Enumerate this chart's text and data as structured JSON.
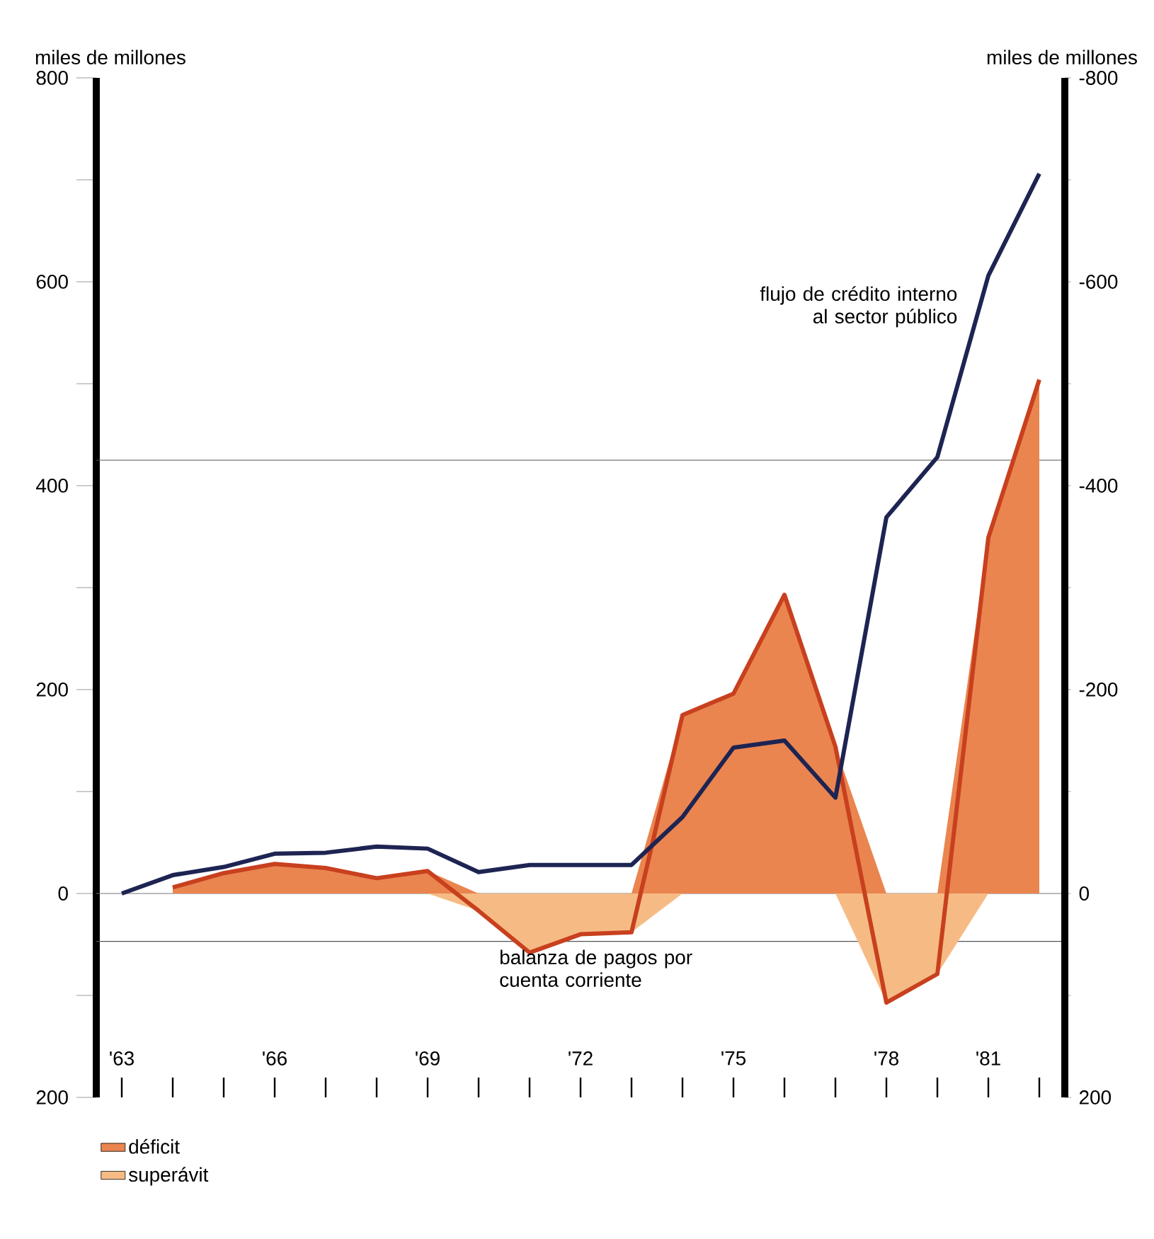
{
  "chart_data": {
    "type": "line",
    "ylabel": "miles de millones",
    "y2label": "miles de millones",
    "categories": [
      "'63",
      null,
      null,
      "'66",
      null,
      null,
      "'69",
      null,
      null,
      "'72",
      null,
      null,
      "'75",
      null,
      null,
      "'78",
      null,
      "'81",
      null
    ],
    "series": [
      {
        "name": "déficit",
        "type": "area",
        "color": "#ea8550",
        "values": [
          null,
          6,
          20,
          29,
          25,
          15,
          22,
          0,
          0,
          0,
          0,
          175,
          196,
          293,
          144,
          0,
          0,
          349,
          504
        ]
      },
      {
        "name": "superávit",
        "type": "area",
        "color": "#f6bb84",
        "values": [
          null,
          0,
          0,
          0,
          0,
          0,
          0,
          -17,
          -58,
          -40,
          -38,
          0,
          0,
          0,
          0,
          -107,
          -79,
          0,
          0
        ]
      },
      {
        "name": "balanza de pagos por cuenta corriente",
        "color": "#c8401e",
        "values": [
          null,
          6,
          20,
          29,
          25,
          15,
          22,
          -17,
          -58,
          -40,
          -38,
          175,
          196,
          293,
          144,
          -107,
          -79,
          349,
          504
        ]
      },
      {
        "name": "flujo de crédito interno al sector público",
        "color": "#1e2452",
        "values": [
          0,
          18,
          26,
          39,
          40,
          46,
          44,
          21,
          28,
          28,
          28,
          75,
          143,
          150,
          94,
          369,
          428,
          606,
          706
        ]
      }
    ],
    "ylim": [
      -200,
      800
    ],
    "yticks": [
      {
        "value": -200,
        "label": "200"
      },
      {
        "value": -100,
        "label": null
      },
      0,
      {
        "value": 100,
        "label": null
      },
      200,
      {
        "value": 300,
        "label": null
      },
      400,
      {
        "value": 500,
        "label": null
      },
      600,
      {
        "value": 700,
        "label": null
      },
      800
    ],
    "y2lim": [
      200,
      -800
    ],
    "y2ticks": [
      200,
      {
        "value": 100,
        "label": null
      },
      0,
      {
        "value": -100,
        "label": null
      },
      -200,
      {
        "value": -300,
        "label": null
      },
      -400,
      {
        "value": -500,
        "label": null
      },
      -600,
      {
        "value": -700,
        "label": null
      },
      -800
    ],
    "ref_lines": [
      {
        "axis": "y",
        "value": 0,
        "color": "#777777"
      },
      {
        "axis": "y",
        "value": 425,
        "color": "#555555"
      },
      {
        "axis": "y",
        "value": -47,
        "color": "#555555"
      }
    ],
    "legend": "bottom left",
    "marker": "none",
    "line_style": "solid"
  }
}
